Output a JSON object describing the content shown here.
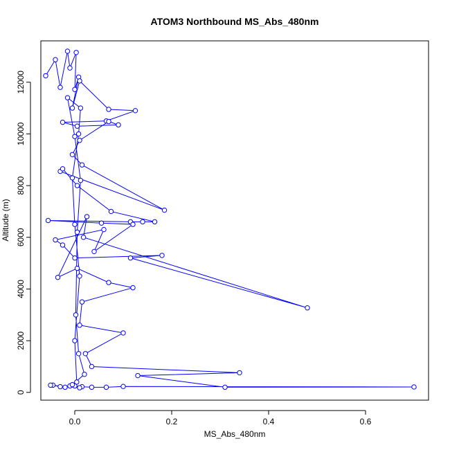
{
  "chart_data": {
    "type": "line",
    "title": "ATOM3 Northbound MS_Abs_480nm",
    "xlabel": "MS_Abs_480nm",
    "ylabel": "Altitude (m)",
    "xlim": [
      -0.07,
      0.73
    ],
    "ylim": [
      -300,
      13600
    ],
    "x_ticks": [
      0.0,
      0.2,
      0.4,
      0.6
    ],
    "x_tick_labels": [
      "0.0",
      "0.2",
      "0.4",
      "0.6"
    ],
    "y_ticks": [
      0,
      2000,
      4000,
      6000,
      8000,
      10000,
      12000
    ],
    "y_tick_labels": [
      "0",
      "2000",
      "4000",
      "6000",
      "8000",
      "10000",
      "12000"
    ],
    "grid": false,
    "legend": "none",
    "style": {
      "line_color": "#0000ff",
      "marker": "open-circle"
    },
    "series": [
      {
        "points": [
          [
            -0.06,
            12250
          ],
          [
            -0.04,
            12870
          ],
          [
            -0.03,
            11800
          ],
          [
            -0.015,
            13200
          ],
          [
            -0.01,
            12550
          ],
          [
            0.003,
            13150
          ],
          [
            0.0,
            11720
          ],
          [
            0.008,
            12200
          ],
          [
            -0.005,
            11000
          ],
          [
            0.01,
            12050
          ],
          [
            0.07,
            10950
          ],
          [
            0.125,
            10900
          ],
          [
            0.065,
            10500
          ],
          [
            -0.025,
            10450
          ],
          [
            0.005,
            10300
          ],
          [
            0.09,
            10350
          ],
          [
            0.07,
            10480
          ],
          [
            0.01,
            9750
          ],
          [
            -0.005,
            9200
          ],
          [
            0.015,
            8800
          ],
          [
            0.185,
            7050
          ],
          [
            -0.03,
            8550
          ],
          [
            -0.025,
            8650
          ],
          [
            0.005,
            8000
          ],
          [
            0.075,
            7000
          ],
          [
            0.165,
            6600
          ],
          [
            0.14,
            6600
          ],
          [
            0.115,
            6600
          ],
          [
            -0.055,
            6650
          ],
          [
            0.055,
            6550
          ],
          [
            0.12,
            6500
          ],
          [
            0.04,
            5450
          ],
          [
            0.06,
            6300
          ],
          [
            -0.04,
            5900
          ],
          [
            -0.025,
            5700
          ],
          [
            0.0,
            5200
          ],
          [
            0.18,
            5300
          ],
          [
            0.115,
            5200
          ],
          [
            0.48,
            3270
          ],
          [
            0.018,
            6000
          ],
          [
            0.025,
            6800
          ],
          [
            -0.035,
            4450
          ],
          [
            0.005,
            4800
          ],
          [
            0.07,
            4250
          ],
          [
            0.12,
            4050
          ],
          [
            0.015,
            3500
          ],
          [
            0.01,
            2600
          ],
          [
            0.1,
            2300
          ],
          [
            0.022,
            1500
          ],
          [
            0.035,
            1000
          ],
          [
            0.34,
            760
          ],
          [
            0.13,
            650
          ],
          [
            0.31,
            200
          ],
          [
            0.7,
            210
          ],
          [
            0.1,
            230
          ],
          [
            0.065,
            200
          ],
          [
            0.035,
            200
          ],
          [
            0.015,
            220
          ],
          [
            0.0,
            250
          ],
          [
            -0.01,
            250
          ],
          [
            -0.02,
            200
          ],
          [
            -0.03,
            220
          ],
          [
            -0.045,
            280
          ],
          [
            -0.05,
            280
          ],
          [
            0.01,
            180
          ],
          [
            -0.005,
            300
          ],
          [
            0.02,
            700
          ],
          [
            0.008,
            1500
          ],
          [
            0.002,
            3000
          ],
          [
            0.005,
            6200
          ],
          [
            0.012,
            8200
          ],
          [
            0.0,
            9900
          ],
          [
            -0.015,
            11400
          ],
          [
            0.012,
            11000
          ],
          [
            0.008,
            10000
          ],
          [
            -0.005,
            8300
          ],
          [
            0.0,
            6500
          ],
          [
            0.01,
            4500
          ],
          [
            0.0,
            2000
          ],
          [
            0.004,
            400
          ]
        ]
      }
    ]
  }
}
